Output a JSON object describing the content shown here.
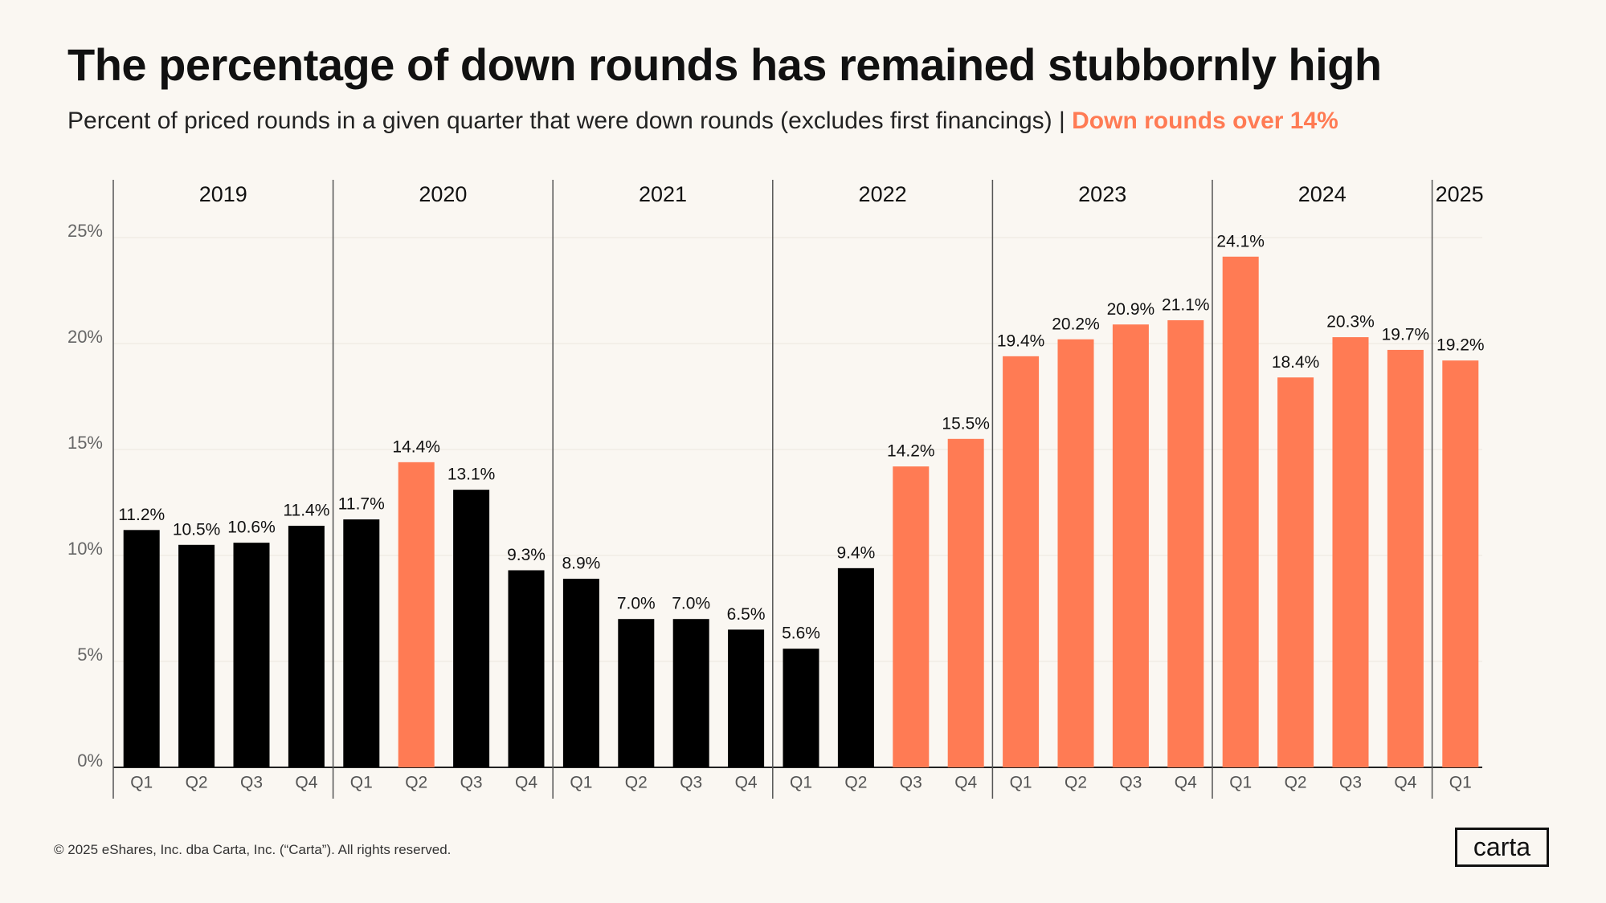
{
  "title": "The percentage of down rounds has remained stubbornly high",
  "subtitle": {
    "text": "Percent of priced rounds in a given quarter that were down rounds (excludes first financings) | ",
    "highlight": "Down rounds over 14%"
  },
  "footer": "© 2025 eShares, Inc. dba Carta, Inc. (“Carta”). All rights reserved.",
  "logo": "carta",
  "colors": {
    "highlight": "#FF7B54",
    "base": "#000000",
    "background": "#FAF7F2"
  },
  "chart_data": {
    "type": "bar",
    "threshold": 14,
    "ylim": [
      0,
      25
    ],
    "yticks": [
      0,
      5,
      10,
      15,
      20,
      25
    ],
    "ytick_labels": [
      "0%",
      "5%",
      "10%",
      "15%",
      "20%",
      "25%"
    ],
    "years": [
      {
        "year": "2019",
        "quarters": [
          "Q1",
          "Q2",
          "Q3",
          "Q4"
        ]
      },
      {
        "year": "2020",
        "quarters": [
          "Q1",
          "Q2",
          "Q3",
          "Q4"
        ]
      },
      {
        "year": "2021",
        "quarters": [
          "Q1",
          "Q2",
          "Q3",
          "Q4"
        ]
      },
      {
        "year": "2022",
        "quarters": [
          "Q1",
          "Q2",
          "Q3",
          "Q4"
        ]
      },
      {
        "year": "2023",
        "quarters": [
          "Q1",
          "Q2",
          "Q3",
          "Q4"
        ]
      },
      {
        "year": "2024",
        "quarters": [
          "Q1",
          "Q2",
          "Q3",
          "Q4"
        ]
      },
      {
        "year": "2025",
        "quarters": [
          "Q1"
        ]
      }
    ],
    "values": [
      11.2,
      10.5,
      10.6,
      11.4,
      11.7,
      14.4,
      13.1,
      9.3,
      8.9,
      7.0,
      7.0,
      6.5,
      5.6,
      9.4,
      14.2,
      15.5,
      19.4,
      20.2,
      20.9,
      21.1,
      24.1,
      18.4,
      20.3,
      19.7,
      19.2
    ],
    "labels": [
      "11.2%",
      "10.5%",
      "10.6%",
      "11.4%",
      "11.7%",
      "14.4%",
      "13.1%",
      "9.3%",
      "8.9%",
      "7.0%",
      "7.0%",
      "6.5%",
      "5.6%",
      "9.4%",
      "14.2%",
      "15.5%",
      "19.4%",
      "20.2%",
      "20.9%",
      "21.1%",
      "24.1%",
      "18.4%",
      "20.3%",
      "19.7%",
      "19.2%"
    ]
  }
}
